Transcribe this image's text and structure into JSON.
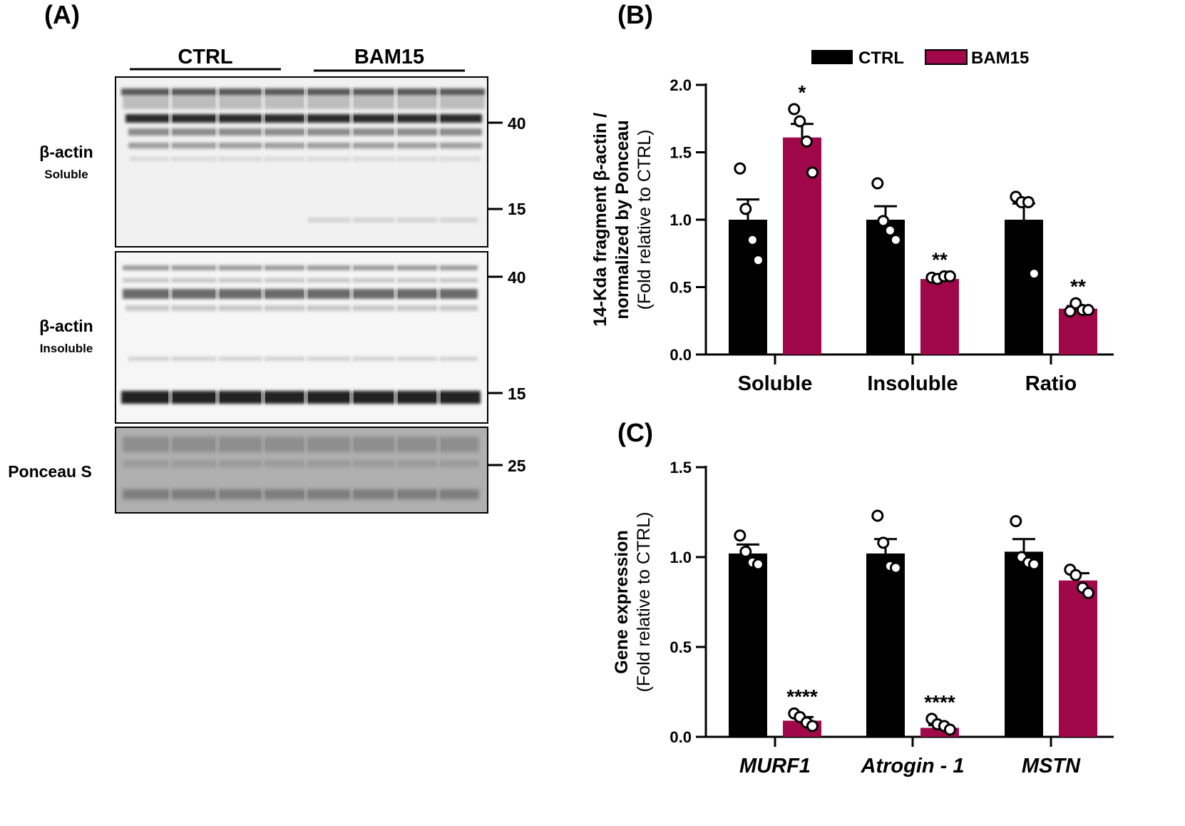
{
  "panels": {
    "a": "(A)",
    "b": "(B)",
    "c": "(C)"
  },
  "blot": {
    "groups": [
      "CTRL",
      "BAM15"
    ],
    "rows": [
      {
        "label": "β-actin",
        "sublabel": "Soluble",
        "markers": [
          "40",
          "15"
        ]
      },
      {
        "label": "β-actin",
        "sublabel": "Insoluble",
        "markers": [
          "40",
          "15"
        ]
      },
      {
        "label": "Ponceau S",
        "sublabel": "",
        "markers": [
          "25"
        ]
      }
    ]
  },
  "colors": {
    "ctrl": "#000000",
    "bam15": "#a0084a"
  },
  "chart_data": [
    {
      "type": "bar",
      "ylabel": "14-Kda fragment β-actin / normalized by Ponceau",
      "ylabel_sub": "(Fold relative to CTRL)",
      "ylim": [
        0,
        2.0
      ],
      "yticks": [
        "0.0",
        "0.5",
        "1.0",
        "1.5",
        "2.0"
      ],
      "categories": [
        "Soluble",
        "Insoluble",
        "Ratio"
      ],
      "legend": [
        "CTRL",
        "BAM15"
      ],
      "legend_position": "top",
      "series": [
        {
          "name": "CTRL",
          "values": [
            1.0,
            1.0,
            1.0
          ],
          "sem": [
            0.15,
            0.1,
            0.12
          ],
          "points": [
            [
              1.38,
              1.08,
              0.85,
              0.7
            ],
            [
              1.27,
              0.99,
              0.92,
              0.85
            ],
            [
              1.17,
              1.13,
              1.13,
              0.6
            ]
          ]
        },
        {
          "name": "BAM15",
          "values": [
            1.61,
            0.56,
            0.34
          ],
          "sem": [
            0.1,
            0.01,
            0.02
          ],
          "points": [
            [
              1.82,
              1.73,
              1.58,
              1.35
            ],
            [
              0.57,
              0.56,
              0.58,
              0.58
            ],
            [
              0.32,
              0.38,
              0.33,
              0.33
            ]
          ]
        }
      ],
      "significance": [
        "*",
        "**",
        "**"
      ]
    },
    {
      "type": "bar",
      "ylabel": "Gene expression",
      "ylabel_sub": "(Fold relative to CTRL)",
      "ylim": [
        0,
        1.5
      ],
      "yticks": [
        "0.0",
        "0.5",
        "1.0",
        "1.5"
      ],
      "categories": [
        "MURF1",
        "Atrogin - 1",
        "MSTN"
      ],
      "series": [
        {
          "name": "CTRL",
          "values": [
            1.02,
            1.02,
            1.03
          ],
          "sem": [
            0.05,
            0.08,
            0.07
          ],
          "points": [
            [
              1.12,
              1.03,
              0.97,
              0.96
            ],
            [
              1.23,
              1.08,
              0.95,
              0.94
            ],
            [
              1.2,
              1.0,
              0.97,
              0.96
            ]
          ]
        },
        {
          "name": "BAM15",
          "values": [
            0.09,
            0.05,
            0.87
          ],
          "sem": [
            0.02,
            0.015,
            0.04
          ],
          "points": [
            [
              0.13,
              0.11,
              0.08,
              0.06
            ],
            [
              0.1,
              0.07,
              0.06,
              0.04
            ],
            [
              0.93,
              0.9,
              0.83,
              0.8
            ]
          ]
        }
      ],
      "significance": [
        "****",
        "****",
        ""
      ]
    }
  ]
}
